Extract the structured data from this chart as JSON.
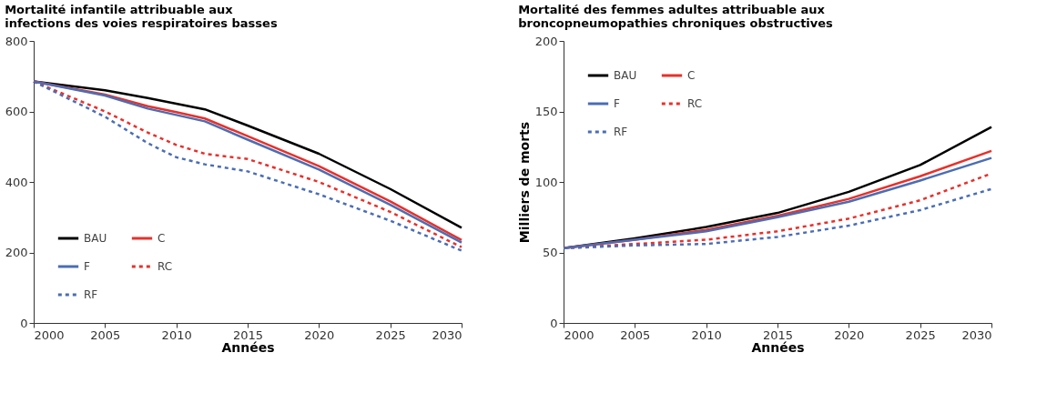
{
  "chart_data": [
    {
      "type": "line",
      "title": "Mortalité infantile attribuable aux\ninfections des voies respiratoires basses",
      "xlabel": "Années",
      "x": [
        2000,
        2005,
        2008,
        2010,
        2012,
        2015,
        2020,
        2025,
        2030
      ],
      "xlim": [
        2000,
        2030
      ],
      "xticks": [
        2000,
        2005,
        2010,
        2015,
        2020,
        2025,
        2030
      ],
      "ylim": [
        0,
        800
      ],
      "yticks": [
        0,
        200,
        400,
        600,
        800
      ],
      "grid": false,
      "legend": "bottom left",
      "series": [
        {
          "name": "BAU",
          "color": "#000000",
          "line_style": "solid",
          "values": [
            685,
            660,
            638,
            622,
            606,
            560,
            480,
            380,
            270
          ]
        },
        {
          "name": "C",
          "color": "#e8302a",
          "line_style": "solid",
          "values": [
            685,
            648,
            615,
            598,
            580,
            530,
            445,
            345,
            235
          ]
        },
        {
          "name": "F",
          "color": "#4a6db5",
          "line_style": "solid",
          "values": [
            685,
            645,
            608,
            590,
            572,
            520,
            435,
            335,
            228
          ]
        },
        {
          "name": "RC",
          "color": "#e8302a",
          "line_style": "dashed",
          "values": [
            685,
            600,
            540,
            505,
            480,
            465,
            400,
            315,
            215
          ]
        },
        {
          "name": "RF",
          "color": "#4a6db5",
          "line_style": "dashed",
          "values": [
            685,
            585,
            510,
            470,
            450,
            430,
            365,
            290,
            205
          ]
        }
      ]
    },
    {
      "type": "line",
      "title": "Mortalité des femmes adultes attribuable aux\nbroncopneumopathies chroniques obstructives",
      "xlabel": "Années",
      "ylabel": "Milliers de morts",
      "x": [
        2000,
        2005,
        2010,
        2015,
        2020,
        2025,
        2030
      ],
      "xlim": [
        2000,
        2030
      ],
      "xticks": [
        2000,
        2005,
        2010,
        2015,
        2020,
        2025,
        2030
      ],
      "ylim": [
        0,
        200
      ],
      "yticks": [
        0,
        50,
        100,
        150,
        200
      ],
      "grid": false,
      "legend": "top left",
      "series": [
        {
          "name": "BAU",
          "color": "#000000",
          "line_style": "solid",
          "values": [
            53,
            60,
            68,
            78,
            93,
            112,
            139
          ]
        },
        {
          "name": "C",
          "color": "#e8302a",
          "line_style": "solid",
          "values": [
            53,
            59,
            66,
            76,
            88,
            104,
            122
          ]
        },
        {
          "name": "F",
          "color": "#4a6db5",
          "line_style": "solid",
          "values": [
            53,
            59,
            65,
            75,
            86,
            101,
            117
          ]
        },
        {
          "name": "RC",
          "color": "#e8302a",
          "line_style": "dashed",
          "values": [
            53,
            56,
            59,
            65,
            74,
            87,
            106
          ]
        },
        {
          "name": "RF",
          "color": "#4a6db5",
          "line_style": "dashed",
          "values": [
            53,
            55,
            56,
            61,
            69,
            80,
            95
          ]
        }
      ]
    }
  ]
}
